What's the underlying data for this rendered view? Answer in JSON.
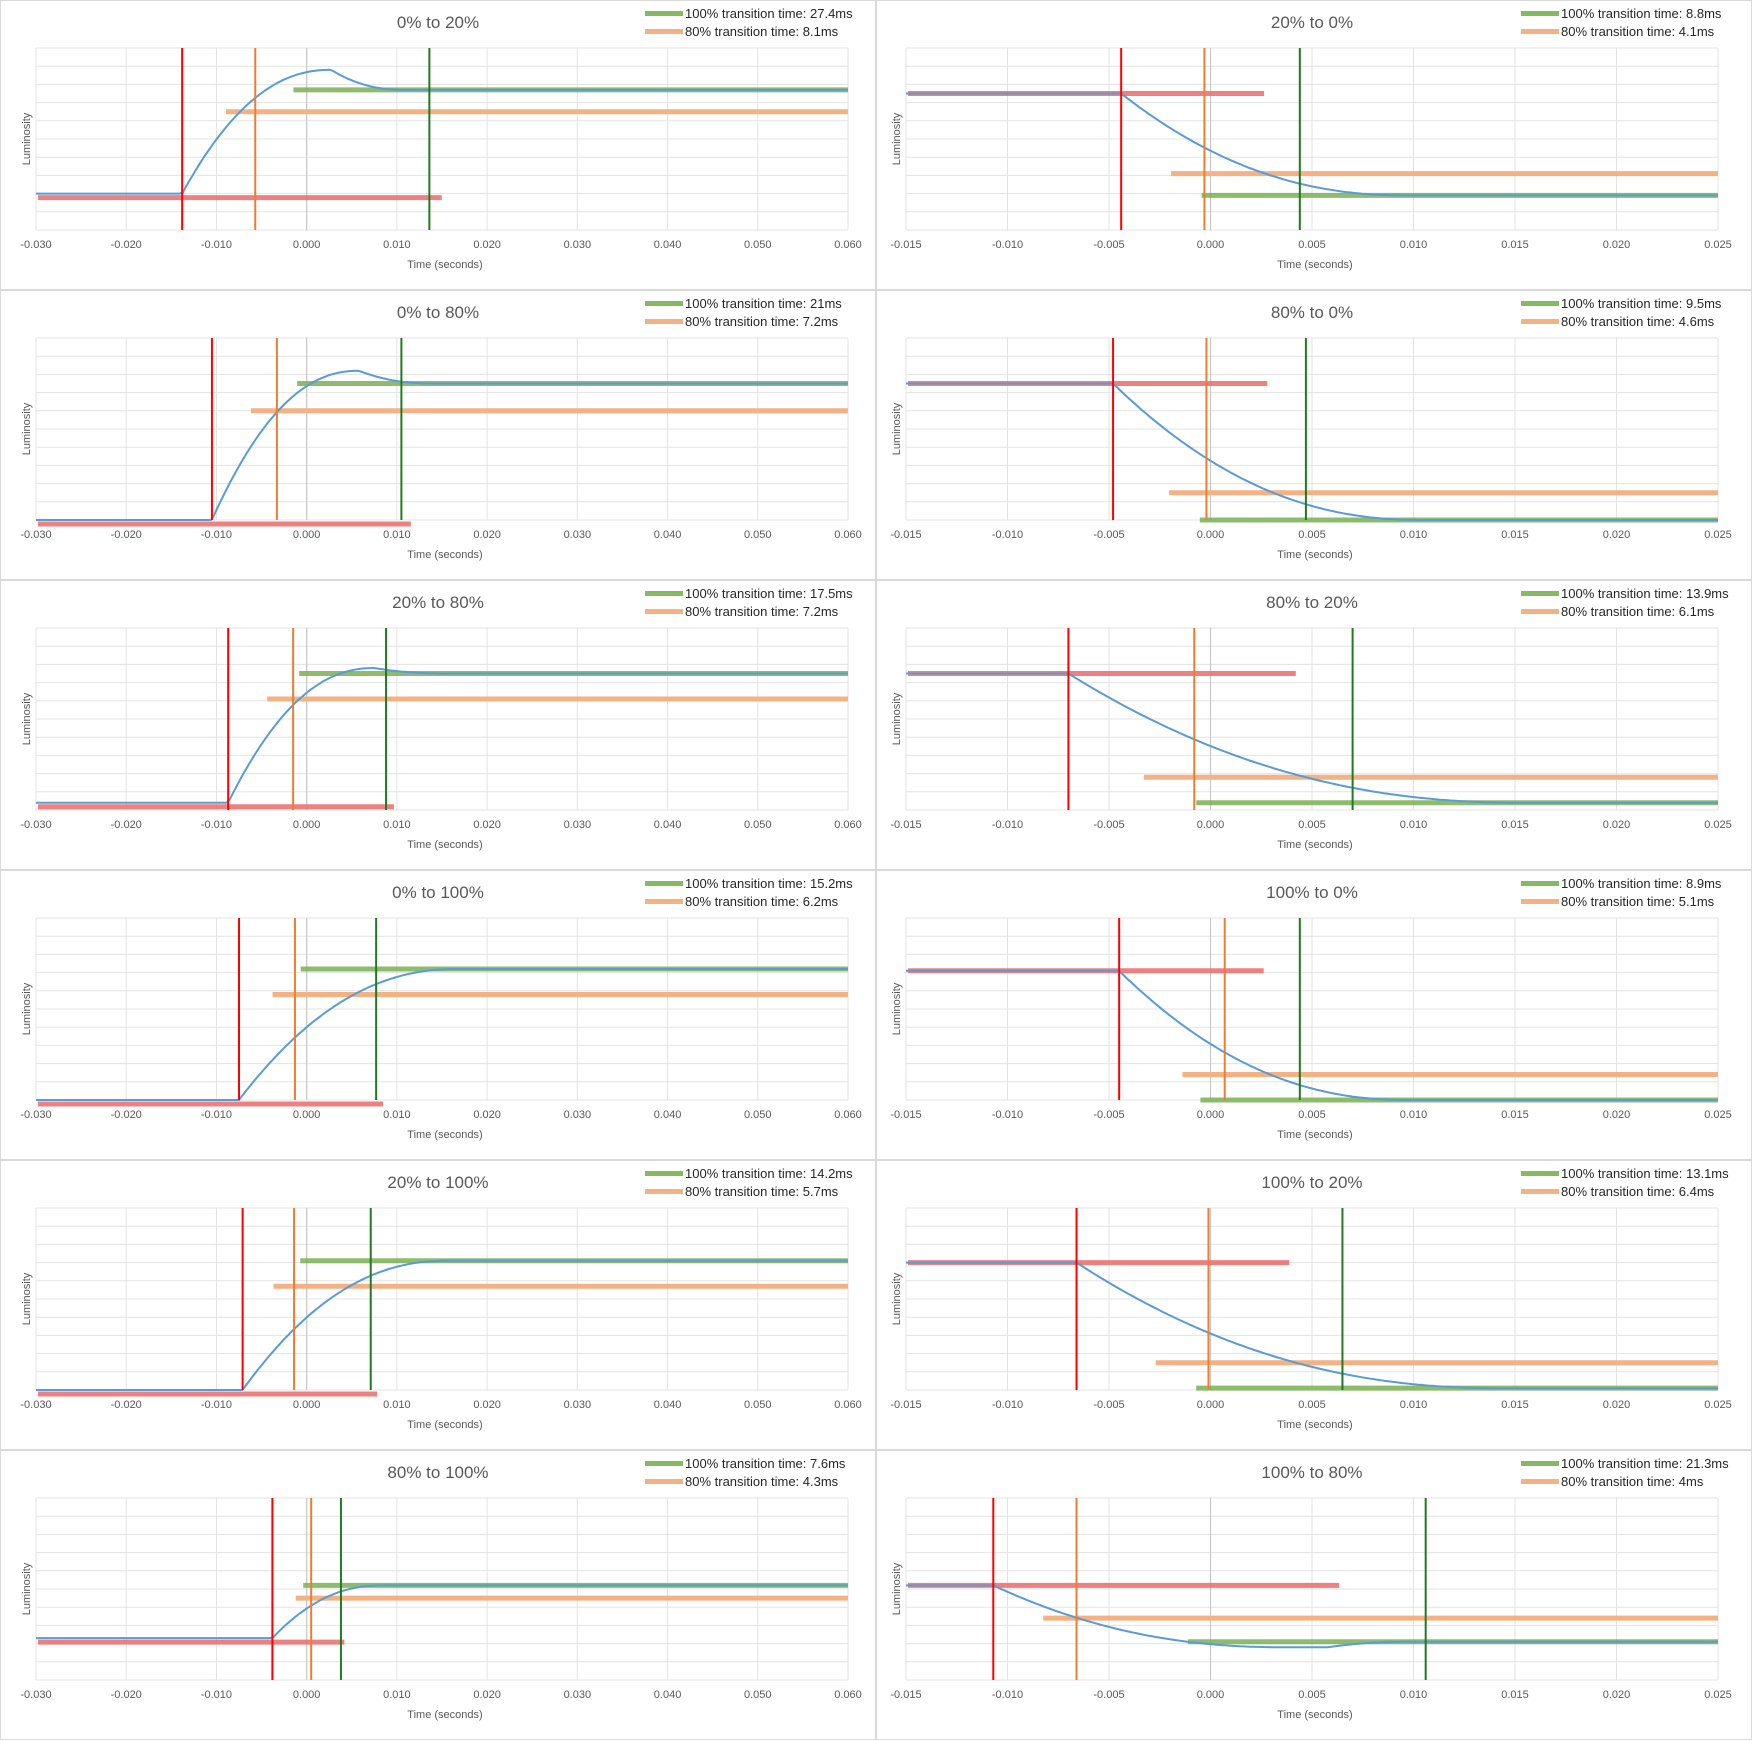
{
  "chart_data": [
    {
      "type": "line",
      "title": "0% to 20%",
      "xlabel": "Time (seconds)",
      "ylabel": "Luminosity",
      "xlim": [
        -0.03,
        0.06
      ],
      "xticks": [
        "-0.030",
        "-0.020",
        "-0.010",
        "0.000",
        "0.010",
        "0.020",
        "0.030",
        "0.040",
        "0.050",
        "0.060"
      ],
      "legend": [
        "100% transition time: 27.4ms",
        "80% transition time: 8.1ms"
      ],
      "series_y": [
        0.2,
        0.8
      ],
      "peak": {
        "x": 0.0027,
        "y": 0.88
      },
      "start_level": 0.2,
      "end_level": 0.77,
      "threshold_80": 0.65,
      "start_x": -0.0138,
      "x80": -0.0057,
      "x100": 0.0136
    },
    {
      "type": "line",
      "title": "20% to 0%",
      "xlabel": "Time (seconds)",
      "ylabel": "Luminosity",
      "xlim": [
        -0.015,
        0.025
      ],
      "xticks": [
        "-0.015",
        "-0.010",
        "-0.005",
        "0.000",
        "0.005",
        "0.010",
        "0.015",
        "0.020",
        "0.025"
      ],
      "legend": [
        "100% transition time: 8.8ms",
        "80% transition time: 4.1ms"
      ],
      "start_level": 0.75,
      "end_level": 0.19,
      "threshold_80": 0.31,
      "start_x": -0.0044,
      "x80": -0.0003,
      "x100": 0.0044
    },
    {
      "type": "line",
      "title": "0% to 80%",
      "xlabel": "Time (seconds)",
      "ylabel": "Luminosity",
      "xlim": [
        -0.03,
        0.06
      ],
      "xticks": [
        "-0.030",
        "-0.020",
        "-0.010",
        "0.000",
        "0.010",
        "0.020",
        "0.030",
        "0.040",
        "0.050",
        "0.060"
      ],
      "legend": [
        "100% transition time: 21ms",
        "80% transition time: 7.2ms"
      ],
      "peak": {
        "x": 0.0058,
        "y": 0.82
      },
      "start_level": 0.0,
      "end_level": 0.75,
      "threshold_80": 0.6,
      "start_x": -0.0105,
      "x80": -0.0033,
      "x100": 0.0105
    },
    {
      "type": "line",
      "title": "80% to 0%",
      "xlabel": "Time (seconds)",
      "ylabel": "Luminosity",
      "xlim": [
        -0.015,
        0.025
      ],
      "xticks": [
        "-0.015",
        "-0.010",
        "-0.005",
        "0.000",
        "0.005",
        "0.010",
        "0.015",
        "0.020",
        "0.025"
      ],
      "legend": [
        "100% transition time: 9.5ms",
        "80% transition time: 4.6ms"
      ],
      "start_level": 0.75,
      "end_level": 0.0,
      "threshold_80": 0.15,
      "start_x": -0.0048,
      "x80": -0.0002,
      "x100": 0.0047
    },
    {
      "type": "line",
      "title": "20% to 80%",
      "xlabel": "Time (seconds)",
      "ylabel": "Luminosity",
      "xlim": [
        -0.03,
        0.06
      ],
      "xticks": [
        "-0.030",
        "-0.020",
        "-0.010",
        "0.000",
        "0.010",
        "0.020",
        "0.030",
        "0.040",
        "0.050",
        "0.060"
      ],
      "legend": [
        "100% transition time: 17.5ms",
        "80% transition time: 7.2ms"
      ],
      "peak": {
        "x": 0.0075,
        "y": 0.78
      },
      "start_level": 0.04,
      "end_level": 0.75,
      "threshold_80": 0.61,
      "start_x": -0.0087,
      "x80": -0.0015,
      "x100": 0.0088
    },
    {
      "type": "line",
      "title": "80% to 20%",
      "xlabel": "Time (seconds)",
      "ylabel": "Luminosity",
      "xlim": [
        -0.015,
        0.025
      ],
      "xticks": [
        "-0.015",
        "-0.010",
        "-0.005",
        "0.000",
        "0.005",
        "0.010",
        "0.015",
        "0.020",
        "0.025"
      ],
      "legend": [
        "100% transition time: 13.9ms",
        "80% transition time: 6.1ms"
      ],
      "start_level": 0.75,
      "end_level": 0.04,
      "threshold_80": 0.18,
      "start_x": -0.007,
      "x80": -0.0008,
      "x100": 0.007
    },
    {
      "type": "line",
      "title": "0% to 100%",
      "xlabel": "Time (seconds)",
      "ylabel": "Luminosity",
      "xlim": [
        -0.03,
        0.06
      ],
      "xticks": [
        "-0.030",
        "-0.020",
        "-0.010",
        "0.000",
        "0.010",
        "0.020",
        "0.030",
        "0.040",
        "0.050",
        "0.060"
      ],
      "legend": [
        "100% transition time: 15.2ms",
        "80% transition time: 6.2ms"
      ],
      "start_level": 0.0,
      "end_level": 0.72,
      "threshold_80": 0.58,
      "start_x": -0.0075,
      "x80": -0.0013,
      "x100": 0.0077
    },
    {
      "type": "line",
      "title": "100% to 0%",
      "xlabel": "Time (seconds)",
      "ylabel": "Luminosity",
      "xlim": [
        -0.015,
        0.025
      ],
      "xticks": [
        "-0.015",
        "-0.010",
        "-0.005",
        "0.000",
        "0.005",
        "0.010",
        "0.015",
        "0.020",
        "0.025"
      ],
      "legend": [
        "100% transition time: 8.9ms",
        "80% transition time: 5.1ms"
      ],
      "start_level": 0.71,
      "end_level": 0.0,
      "threshold_80": 0.14,
      "start_x": -0.0045,
      "x80": 0.0007,
      "x100": 0.0044
    },
    {
      "type": "line",
      "title": "20% to 100%",
      "xlabel": "Time (seconds)",
      "ylabel": "Luminosity",
      "xlim": [
        -0.03,
        0.06
      ],
      "xticks": [
        "-0.030",
        "-0.020",
        "-0.010",
        "0.000",
        "0.010",
        "0.020",
        "0.030",
        "0.040",
        "0.050",
        "0.060"
      ],
      "legend": [
        "100% transition time: 14.2ms",
        "80% transition time: 5.7ms"
      ],
      "start_level": 0.0,
      "end_level": 0.71,
      "threshold_80": 0.57,
      "start_x": -0.0071,
      "x80": -0.0014,
      "x100": 0.0071
    },
    {
      "type": "line",
      "title": "100% to 20%",
      "xlabel": "Time (seconds)",
      "ylabel": "Luminosity",
      "xlim": [
        -0.015,
        0.025
      ],
      "xticks": [
        "-0.015",
        "-0.010",
        "-0.005",
        "0.000",
        "0.005",
        "0.010",
        "0.015",
        "0.020",
        "0.025"
      ],
      "legend": [
        "100% transition time: 13.1ms",
        "80% transition time: 6.4ms"
      ],
      "start_level": 0.7,
      "end_level": 0.01,
      "threshold_80": 0.15,
      "start_x": -0.0066,
      "x80": -0.0001,
      "x100": 0.0065
    },
    {
      "type": "line",
      "title": "80% to 100%",
      "xlabel": "Time (seconds)",
      "ylabel": "Luminosity",
      "xlim": [
        -0.03,
        0.06
      ],
      "xticks": [
        "-0.030",
        "-0.020",
        "-0.010",
        "0.000",
        "0.010",
        "0.020",
        "0.030",
        "0.040",
        "0.050",
        "0.060"
      ],
      "legend": [
        "100% transition time: 7.6ms",
        "80% transition time: 4.3ms"
      ],
      "start_level": 0.23,
      "end_level": 0.52,
      "threshold_80": 0.45,
      "start_x": -0.0038,
      "x80": 0.0005,
      "x100": 0.0038
    },
    {
      "type": "line",
      "title": "100% to 80%",
      "xlabel": "Time (seconds)",
      "ylabel": "Luminosity",
      "xlim": [
        -0.015,
        0.025
      ],
      "xticks": [
        "-0.015",
        "-0.010",
        "-0.005",
        "0.000",
        "0.005",
        "0.010",
        "0.015",
        "0.020",
        "0.025"
      ],
      "legend": [
        "100% transition time: 21.3ms",
        "80% transition time: 4ms"
      ],
      "dip": {
        "x": 0.0058,
        "y": 0.18
      },
      "start_level": 0.52,
      "end_level": 0.21,
      "threshold_80": 0.34,
      "start_x": -0.0107,
      "x80": -0.0066,
      "x100": 0.0106
    }
  ]
}
